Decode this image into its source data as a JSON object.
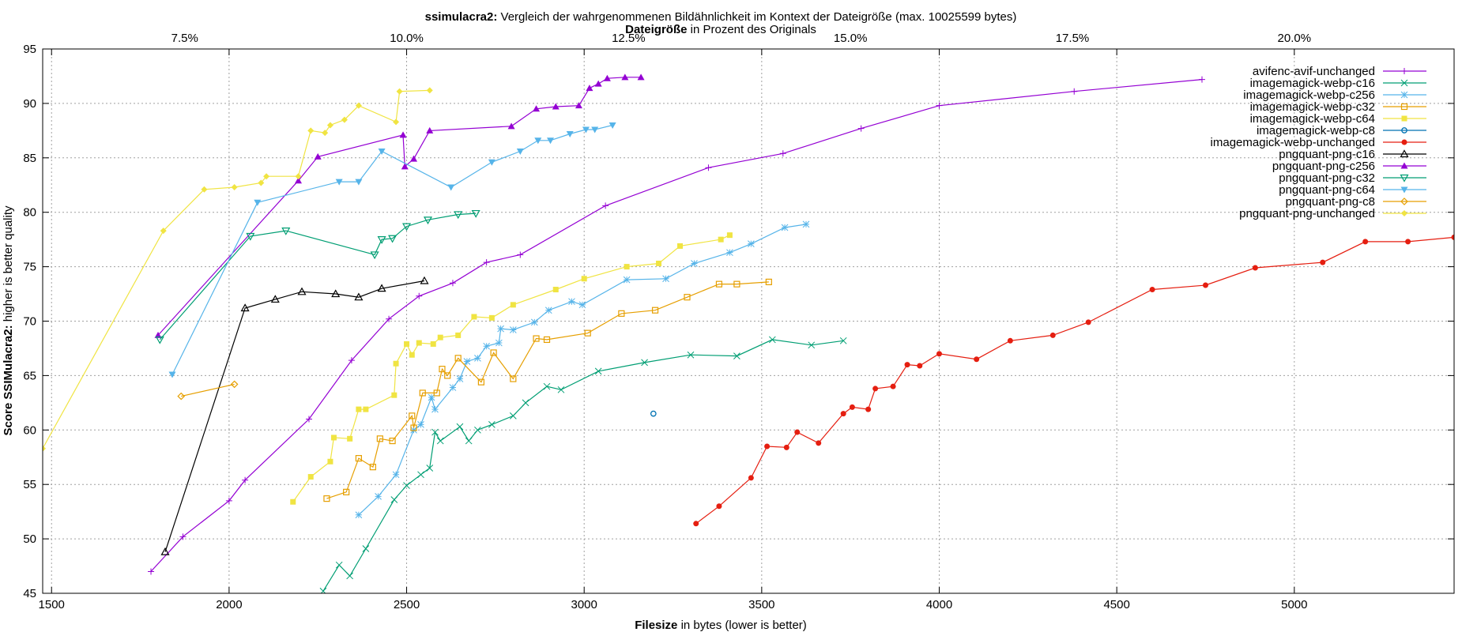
{
  "chart_data": {
    "type": "line",
    "title_bold": "ssimulacra2:",
    "title_rest": " Vergleich der wahrgenommenen Bildähnlichkeit im Kontext der Dateigröße (max. 10025599 bytes)",
    "x2label_bold": "Dateigröße",
    "x2label_rest": " in Prozent des Originals",
    "xlabel_bold": "Filesize",
    "xlabel_rest": " in bytes (lower is better)",
    "ylabel_bold": "Score SSIMulacra2:",
    "ylabel_rest": " higher is better quality",
    "xlim": [
      1475,
      5450
    ],
    "ylim": [
      45,
      95
    ],
    "x_ticks": [
      1500,
      2000,
      2500,
      3000,
      3500,
      4000,
      4500,
      5000
    ],
    "y_ticks": [
      45,
      50,
      55,
      60,
      65,
      70,
      75,
      80,
      85,
      90,
      95
    ],
    "x2_ticks": [
      "7.5%",
      "10.0%",
      "12.5%",
      "15.0%",
      "17.5%",
      "20.0%"
    ],
    "x2_tick_values": [
      7.5,
      10.0,
      12.5,
      15.0,
      17.5,
      20.0
    ],
    "x2_total_bytes": 10025599,
    "grid": true,
    "legend_position": "top-right",
    "series": [
      {
        "name": "avifenc-avif-unchanged",
        "color": "#9400d3",
        "marker": "plus",
        "points": [
          [
            1780,
            47
          ],
          [
            1870,
            50.2
          ],
          [
            2000,
            53.5
          ],
          [
            2045,
            55.4
          ],
          [
            2225,
            61
          ],
          [
            2345,
            66.4
          ],
          [
            2450,
            70.2
          ],
          [
            2535,
            72.3
          ],
          [
            2630,
            73.5
          ],
          [
            2725,
            75.4
          ],
          [
            2820,
            76.1
          ],
          [
            3060,
            80.6
          ],
          [
            3350,
            84.1
          ],
          [
            3560,
            85.4
          ],
          [
            3780,
            87.7
          ],
          [
            4000,
            89.8
          ],
          [
            4380,
            91.1
          ],
          [
            4740,
            92.2
          ]
        ]
      },
      {
        "name": "imagemagick-webp-c16",
        "color": "#009e73",
        "marker": "x",
        "points": [
          [
            2265,
            45.2
          ],
          [
            2310,
            47.6
          ],
          [
            2340,
            46.6
          ],
          [
            2385,
            49.1
          ],
          [
            2465,
            53.6
          ],
          [
            2500,
            54.9
          ],
          [
            2540,
            55.9
          ],
          [
            2565,
            56.5
          ],
          [
            2580,
            59.8
          ],
          [
            2595,
            59
          ],
          [
            2650,
            60.3
          ],
          [
            2675,
            59
          ],
          [
            2700,
            60
          ],
          [
            2740,
            60.5
          ],
          [
            2800,
            61.3
          ],
          [
            2835,
            62.5
          ],
          [
            2895,
            64
          ],
          [
            2935,
            63.7
          ],
          [
            3040,
            65.4
          ],
          [
            3170,
            66.2
          ],
          [
            3300,
            66.9
          ],
          [
            3430,
            66.8
          ],
          [
            3530,
            68.3
          ],
          [
            3640,
            67.8
          ],
          [
            3730,
            68.2
          ]
        ]
      },
      {
        "name": "imagemagick-webp-c256",
        "color": "#56b4e9",
        "marker": "star",
        "points": [
          [
            2365,
            52.2
          ],
          [
            2420,
            53.9
          ],
          [
            2470,
            55.9
          ],
          [
            2520,
            60
          ],
          [
            2540,
            60.5
          ],
          [
            2570,
            63
          ],
          [
            2580,
            61.9
          ],
          [
            2630,
            63.9
          ],
          [
            2650,
            64.7
          ],
          [
            2670,
            66.3
          ],
          [
            2700,
            66.6
          ],
          [
            2725,
            67.7
          ],
          [
            2760,
            68
          ],
          [
            2765,
            69.3
          ],
          [
            2800,
            69.2
          ],
          [
            2860,
            69.9
          ],
          [
            2900,
            71
          ],
          [
            2965,
            71.8
          ],
          [
            2995,
            71.5
          ],
          [
            3120,
            73.8
          ],
          [
            3230,
            73.9
          ],
          [
            3310,
            75.3
          ],
          [
            3410,
            76.3
          ],
          [
            3470,
            77.1
          ],
          [
            3565,
            78.6
          ],
          [
            3625,
            78.9
          ]
        ]
      },
      {
        "name": "imagemagick-webp-c32",
        "color": "#e69f00",
        "marker": "square",
        "points": [
          [
            2275,
            53.7
          ],
          [
            2330,
            54.3
          ],
          [
            2365,
            57.4
          ],
          [
            2405,
            56.6
          ],
          [
            2425,
            59.2
          ],
          [
            2460,
            59
          ],
          [
            2515,
            61.3
          ],
          [
            2520,
            60.2
          ],
          [
            2545,
            63.4
          ],
          [
            2585,
            63.4
          ],
          [
            2600,
            65.6
          ],
          [
            2615,
            65
          ],
          [
            2645,
            66.6
          ],
          [
            2710,
            64.4
          ],
          [
            2745,
            67.1
          ],
          [
            2800,
            64.7
          ],
          [
            2865,
            68.4
          ],
          [
            2895,
            68.3
          ],
          [
            3010,
            68.9
          ],
          [
            3105,
            70.7
          ],
          [
            3200,
            71
          ],
          [
            3290,
            72.2
          ],
          [
            3380,
            73.4
          ],
          [
            3430,
            73.4
          ],
          [
            3520,
            73.6
          ]
        ]
      },
      {
        "name": "imagemagick-webp-c64",
        "color": "#f0e442",
        "marker": "filled-square",
        "points": [
          [
            2180,
            53.4
          ],
          [
            2230,
            55.7
          ],
          [
            2285,
            57.1
          ],
          [
            2295,
            59.3
          ],
          [
            2340,
            59.2
          ],
          [
            2365,
            61.9
          ],
          [
            2385,
            61.9
          ],
          [
            2465,
            63.2
          ],
          [
            2470,
            66.1
          ],
          [
            2500,
            67.9
          ],
          [
            2515,
            66.9
          ],
          [
            2535,
            68
          ],
          [
            2575,
            67.9
          ],
          [
            2595,
            68.5
          ],
          [
            2645,
            68.7
          ],
          [
            2690,
            70.4
          ],
          [
            2740,
            70.3
          ],
          [
            2800,
            71.5
          ],
          [
            2920,
            72.9
          ],
          [
            3000,
            73.9
          ],
          [
            3120,
            75
          ],
          [
            3210,
            75.3
          ],
          [
            3270,
            76.9
          ],
          [
            3385,
            77.5
          ],
          [
            3410,
            77.9
          ]
        ]
      },
      {
        "name": "imagemagick-webp-c8",
        "color": "#0072b2",
        "marker": "circle",
        "points": [
          [
            3195,
            61.5
          ]
        ]
      },
      {
        "name": "imagemagick-webp-unchanged",
        "color": "#e51e10",
        "marker": "filled-circle",
        "points": [
          [
            3315,
            51.4
          ],
          [
            3380,
            53
          ],
          [
            3470,
            55.6
          ],
          [
            3515,
            58.5
          ],
          [
            3570,
            58.4
          ],
          [
            3600,
            59.8
          ],
          [
            3660,
            58.8
          ],
          [
            3730,
            61.5
          ],
          [
            3755,
            62.1
          ],
          [
            3800,
            61.9
          ],
          [
            3820,
            63.8
          ],
          [
            3870,
            64
          ],
          [
            3910,
            66
          ],
          [
            3945,
            65.9
          ],
          [
            4000,
            67
          ],
          [
            4105,
            66.5
          ],
          [
            4200,
            68.2
          ],
          [
            4320,
            68.7
          ],
          [
            4420,
            69.9
          ],
          [
            4600,
            72.9
          ],
          [
            4750,
            73.3
          ],
          [
            4890,
            74.9
          ],
          [
            5080,
            75.4
          ],
          [
            5200,
            77.3
          ],
          [
            5320,
            77.3
          ],
          [
            5450,
            77.7
          ]
        ]
      },
      {
        "name": "pngquant-png-c16",
        "color": "#000000",
        "marker": "triangle",
        "points": [
          [
            1820,
            48.8
          ],
          [
            2045,
            71.2
          ],
          [
            2130,
            72
          ],
          [
            2205,
            72.7
          ],
          [
            2300,
            72.5
          ],
          [
            2365,
            72.2
          ],
          [
            2430,
            73
          ],
          [
            2550,
            73.7
          ]
        ]
      },
      {
        "name": "pngquant-png-c256",
        "color": "#9400d3",
        "marker": "filled-triangle",
        "points": [
          [
            1800,
            68.7
          ],
          [
            2195,
            82.9
          ],
          [
            2250,
            85.1
          ],
          [
            2490,
            87.1
          ],
          [
            2495,
            84.2
          ],
          [
            2520,
            84.9
          ],
          [
            2565,
            87.5
          ],
          [
            2795,
            87.9
          ],
          [
            2865,
            89.5
          ],
          [
            2920,
            89.7
          ],
          [
            2985,
            89.8
          ],
          [
            3015,
            91.4
          ],
          [
            3040,
            91.8
          ],
          [
            3065,
            92.3
          ],
          [
            3115,
            92.4
          ],
          [
            3160,
            92.4
          ]
        ]
      },
      {
        "name": "pngquant-png-c32",
        "color": "#009e73",
        "marker": "triangle-down",
        "points": [
          [
            1805,
            68.3
          ],
          [
            2060,
            77.8
          ],
          [
            2160,
            78.3
          ],
          [
            2410,
            76.1
          ],
          [
            2430,
            77.5
          ],
          [
            2460,
            77.6
          ],
          [
            2500,
            78.7
          ],
          [
            2560,
            79.3
          ],
          [
            2645,
            79.8
          ],
          [
            2695,
            79.9
          ]
        ]
      },
      {
        "name": "pngquant-png-c64",
        "color": "#56b4e9",
        "marker": "filled-triangle-down",
        "points": [
          [
            1840,
            65.1
          ],
          [
            2080,
            80.9
          ],
          [
            2310,
            82.8
          ],
          [
            2365,
            82.8
          ],
          [
            2430,
            85.6
          ],
          [
            2625,
            82.3
          ],
          [
            2740,
            84.6
          ],
          [
            2820,
            85.6
          ],
          [
            2870,
            86.6
          ],
          [
            2905,
            86.6
          ],
          [
            2960,
            87.2
          ],
          [
            3005,
            87.6
          ],
          [
            3030,
            87.6
          ],
          [
            3080,
            88
          ]
        ]
      },
      {
        "name": "pngquant-png-c8",
        "color": "#e69f00",
        "marker": "diamond",
        "points": [
          [
            1865,
            63.1
          ],
          [
            2015,
            64.2
          ]
        ]
      },
      {
        "name": "pngquant-png-unchanged",
        "color": "#f0e442",
        "marker": "filled-diamond",
        "points": [
          [
            1475,
            58.3
          ],
          [
            1815,
            78.3
          ],
          [
            1930,
            82.1
          ],
          [
            2015,
            82.3
          ],
          [
            2090,
            82.7
          ],
          [
            2105,
            83.3
          ],
          [
            2195,
            83.3
          ],
          [
            2230,
            87.5
          ],
          [
            2270,
            87.3
          ],
          [
            2285,
            88
          ],
          [
            2325,
            88.5
          ],
          [
            2365,
            89.8
          ],
          [
            2470,
            88.3
          ],
          [
            2480,
            91.1
          ],
          [
            2565,
            91.2
          ]
        ]
      }
    ]
  }
}
